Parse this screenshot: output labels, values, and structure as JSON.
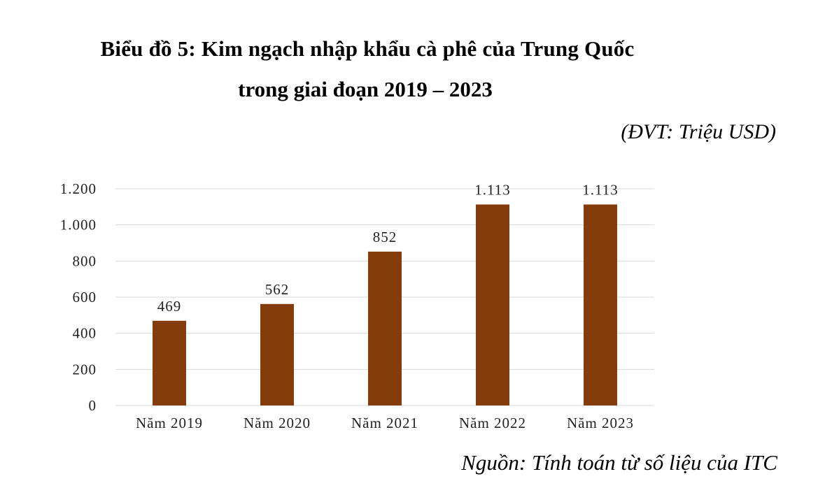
{
  "title_line1": "Biểu đồ 5: Kim ngạch nhập khẩu cà phê của Trung Quốc",
  "title_line2": "trong giai đoạn 2019 – 2023",
  "unit_note": "(ĐVT: Triệu USD)",
  "source_note": "Nguồn: Tính toán từ số liệu của ITC",
  "chart_data": {
    "type": "bar",
    "categories": [
      "Năm 2019",
      "Năm 2020",
      "Năm 2021",
      "Năm 2022",
      "Năm 2023"
    ],
    "values": [
      469,
      562,
      852,
      1113,
      1113
    ],
    "data_labels": [
      "469",
      "562",
      "852",
      "1.113",
      "1.113"
    ],
    "y_ticks": [
      0,
      200,
      400,
      600,
      800,
      1000,
      1200
    ],
    "y_tick_labels": [
      "0",
      "200",
      "400",
      "600",
      "800",
      "1.000",
      "1.200"
    ],
    "ylim": [
      0,
      1200
    ],
    "grid": true,
    "bar_color": "#843C0C",
    "grid_color": "#d9d9d9"
  }
}
